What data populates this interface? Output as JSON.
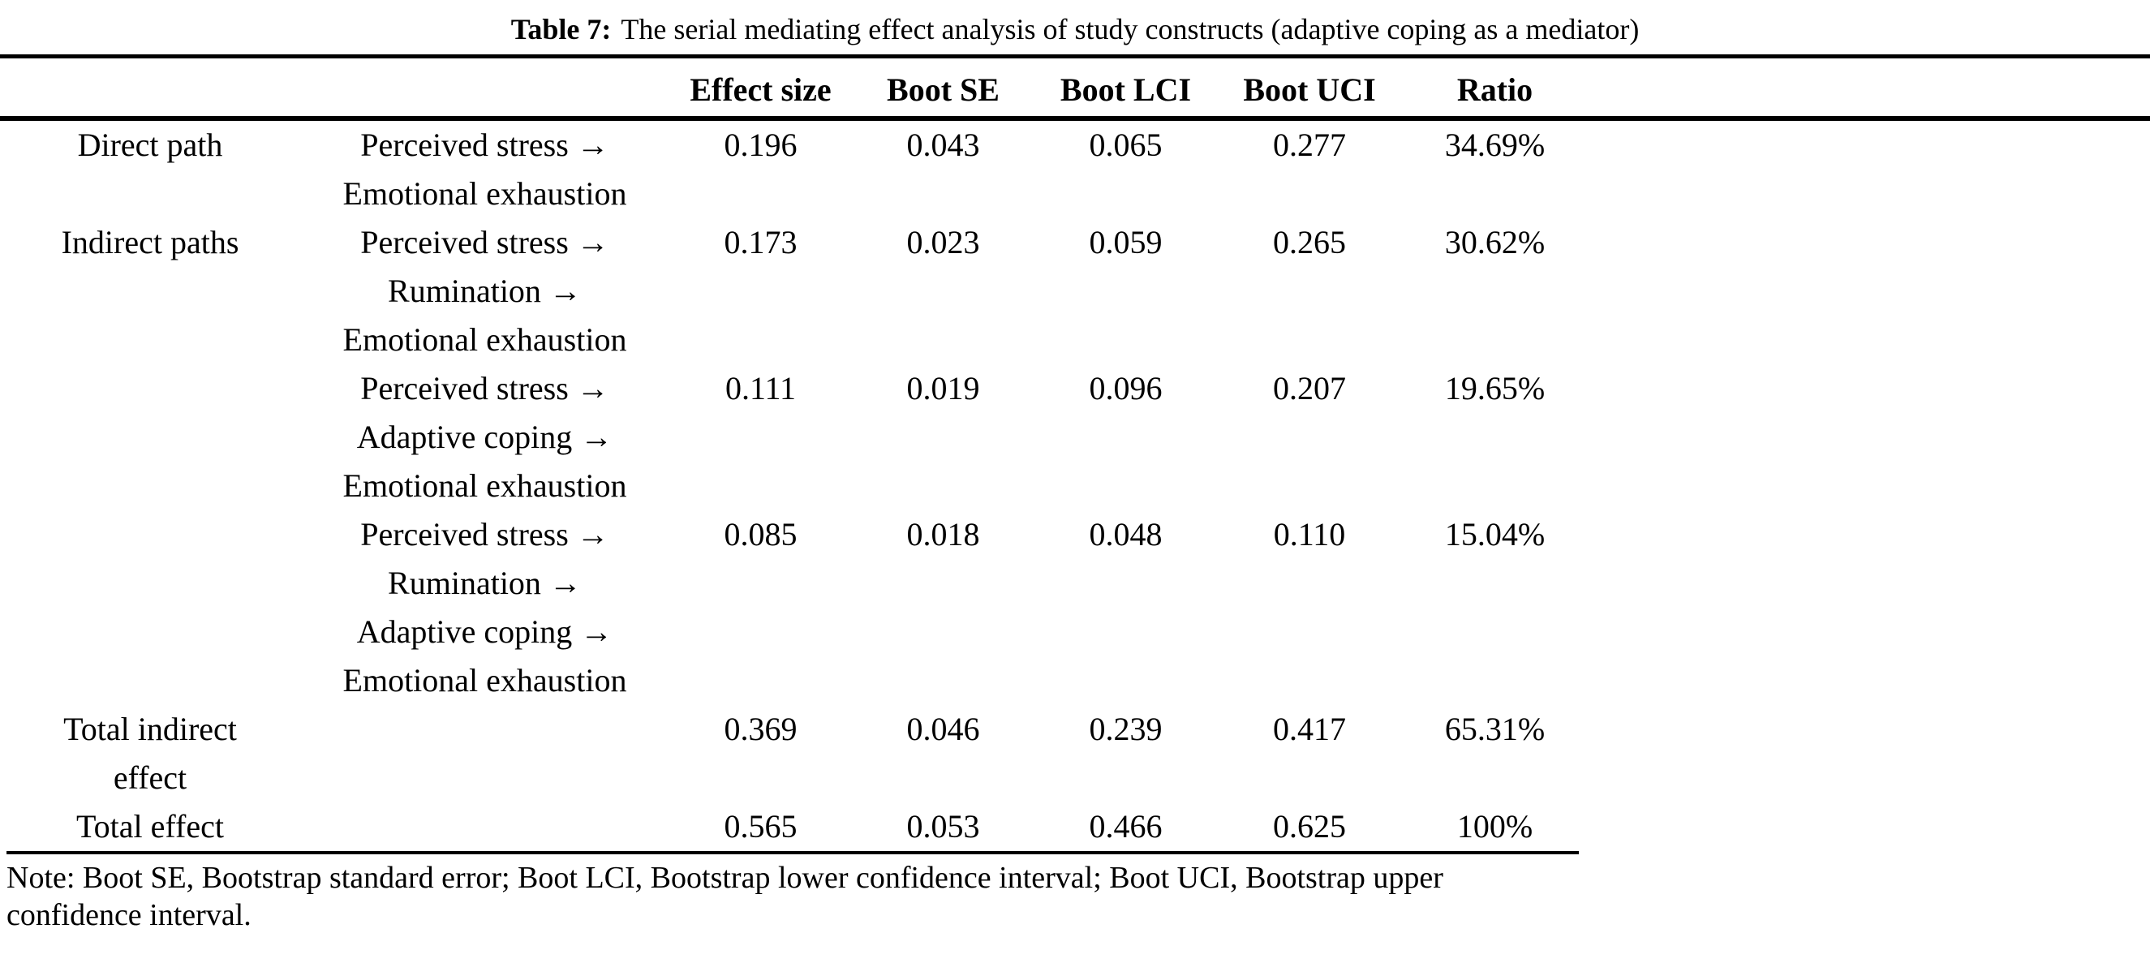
{
  "title": {
    "label": "Table 7:",
    "text": "The serial mediating effect analysis of study constructs (adaptive coping as a mediator)"
  },
  "header": {
    "columns": [
      {
        "line1": "Effect",
        "line2": "size"
      },
      {
        "line1": "Boot SE",
        "line2": ""
      },
      {
        "line1": "Boot LCI",
        "line2": ""
      },
      {
        "line1": "Boot",
        "line2": "UCI"
      },
      {
        "line1": "Ratio",
        "line2": ""
      }
    ]
  },
  "rows": [
    {
      "category": [
        "Direct path"
      ],
      "path": [
        "Perceived stress →",
        "Emotional exhaustion"
      ],
      "effect_size": "0.196",
      "boot_se": "0.043",
      "boot_lci": "0.065",
      "boot_uci": "0.277",
      "ratio": "34.69%"
    },
    {
      "category": [
        "Indirect paths"
      ],
      "path": [
        "Perceived stress →",
        "Rumination →",
        "Emotional exhaustion"
      ],
      "effect_size": "0.173",
      "boot_se": "0.023",
      "boot_lci": "0.059",
      "boot_uci": "0.265",
      "ratio": "30.62%"
    },
    {
      "category": [],
      "path": [
        "Perceived stress →",
        "Adaptive coping →",
        "Emotional exhaustion"
      ],
      "effect_size": "0.111",
      "boot_se": "0.019",
      "boot_lci": "0.096",
      "boot_uci": "0.207",
      "ratio": "19.65%"
    },
    {
      "category": [],
      "path": [
        "Perceived stress →",
        "Rumination →",
        "Adaptive coping →",
        "Emotional exhaustion"
      ],
      "effect_size": "0.085",
      "boot_se": "0.018",
      "boot_lci": "0.048",
      "boot_uci": "0.110",
      "ratio": "15.04%"
    },
    {
      "category": [
        "Total indirect",
        "effect"
      ],
      "path": [],
      "effect_size": "0.369",
      "boot_se": "0.046",
      "boot_lci": "0.239",
      "boot_uci": "0.417",
      "ratio": "65.31%"
    },
    {
      "category": [
        "Total effect"
      ],
      "path": [],
      "effect_size": "0.565",
      "boot_se": "0.053",
      "boot_lci": "0.466",
      "boot_uci": "0.625",
      "ratio": "100%"
    }
  ],
  "note": {
    "line1": "Note: Boot SE, Bootstrap standard error; Boot LCI, Bootstrap lower confidence interval; Boot UCI, Bootstrap upper",
    "line2": "confidence interval."
  }
}
